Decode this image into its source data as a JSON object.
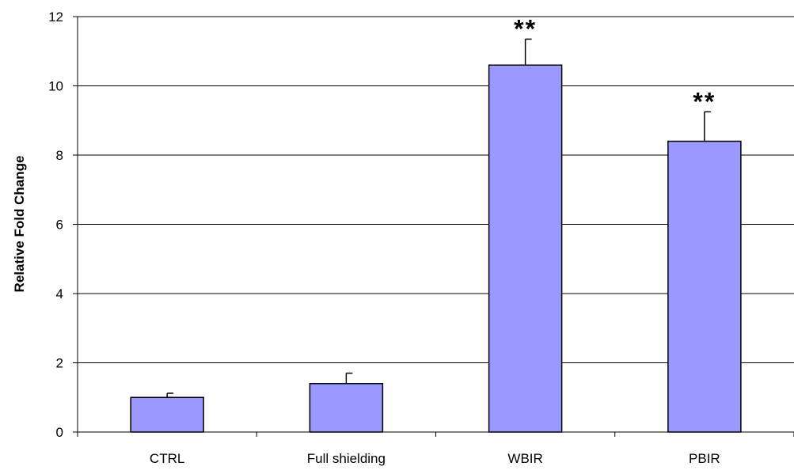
{
  "chart_data": {
    "type": "bar",
    "categories": [
      "CTRL",
      "Full shielding",
      "WBIR",
      "PBIR"
    ],
    "values": [
      1.0,
      1.4,
      10.6,
      8.4
    ],
    "errors": [
      0.12,
      0.3,
      0.75,
      0.85
    ],
    "significance": [
      "",
      "",
      "**",
      "**"
    ],
    "title": "",
    "xlabel": "",
    "ylabel": "Relative Fold Change",
    "ylim": [
      0,
      12
    ],
    "yticks": [
      0,
      2,
      4,
      6,
      8,
      10,
      12
    ],
    "grid": true,
    "legend": "none",
    "colors": {
      "bar_fill": "#9999ff",
      "bar_stroke": "#000000",
      "grid": "#000000"
    }
  }
}
